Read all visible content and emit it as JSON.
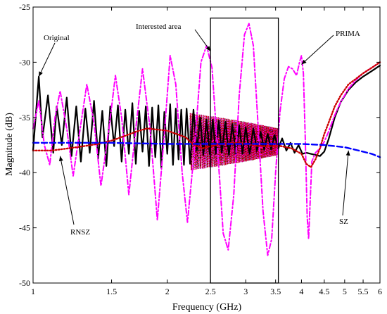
{
  "chart_data": {
    "type": "line",
    "xlabel": "Frequency (GHz)",
    "ylabel": "Magnitude (dB)",
    "x_scale": "log",
    "xlim": [
      1,
      6
    ],
    "ylim": [
      -50,
      -25
    ],
    "xticks": [
      1,
      1.5,
      2,
      2.5,
      3,
      3.5,
      4,
      4.5,
      5,
      5.5,
      6
    ],
    "xtick_labels": [
      "1",
      "1.5",
      "2",
      "2.5",
      "3",
      "3.5",
      "4",
      "4.5",
      "5",
      "5.5",
      "6"
    ],
    "yticks": [
      -50,
      -45,
      -40,
      -35,
      -30,
      -25
    ],
    "ytick_labels": [
      "-50",
      "-45",
      "-40",
      "-35",
      "-30",
      "-25"
    ],
    "grid": false,
    "series": [
      {
        "name": "Original",
        "color": "#000000",
        "style": "solid",
        "points": [
          [
            1.0,
            -38.0
          ],
          [
            1.03,
            -31.3
          ],
          [
            1.05,
            -36.8
          ],
          [
            1.08,
            -33.0
          ],
          [
            1.11,
            -38.2
          ],
          [
            1.13,
            -34.0
          ],
          [
            1.16,
            -37.5
          ],
          [
            1.19,
            -33.2
          ],
          [
            1.22,
            -38.5
          ],
          [
            1.25,
            -34.0
          ],
          [
            1.28,
            -39.0
          ],
          [
            1.31,
            -34.2
          ],
          [
            1.34,
            -38.2
          ],
          [
            1.37,
            -33.5
          ],
          [
            1.4,
            -38.7
          ],
          [
            1.43,
            -34.4
          ],
          [
            1.46,
            -39.4
          ],
          [
            1.49,
            -34.0
          ],
          [
            1.52,
            -37.6
          ],
          [
            1.55,
            -33.9
          ],
          [
            1.58,
            -39.0
          ],
          [
            1.61,
            -34.3
          ],
          [
            1.64,
            -38.3
          ],
          [
            1.67,
            -33.7
          ],
          [
            1.7,
            -39.2
          ],
          [
            1.73,
            -34.4
          ],
          [
            1.76,
            -38.1
          ],
          [
            1.79,
            -34.0
          ],
          [
            1.82,
            -39.4
          ],
          [
            1.85,
            -34.1
          ],
          [
            1.88,
            -38.6
          ],
          [
            1.91,
            -33.9
          ],
          [
            1.94,
            -39.6
          ],
          [
            1.97,
            -34.5
          ],
          [
            2.0,
            -38.3
          ],
          [
            2.03,
            -33.8
          ],
          [
            2.06,
            -39.3
          ],
          [
            2.09,
            -34.2
          ],
          [
            2.12,
            -38.8
          ],
          [
            2.15,
            -34.3
          ],
          [
            2.18,
            -39.3
          ],
          [
            2.21,
            -34.2
          ],
          [
            2.25,
            -39.2
          ],
          [
            2.29,
            -34.3
          ],
          [
            2.33,
            -38.0
          ],
          [
            2.37,
            -35.0
          ],
          [
            2.41,
            -38.4
          ],
          [
            2.45,
            -35.2
          ],
          [
            2.49,
            -38.3
          ],
          [
            2.53,
            -35.2
          ],
          [
            2.57,
            -38.3
          ],
          [
            2.61,
            -35.3
          ],
          [
            2.65,
            -38.2
          ],
          [
            2.7,
            -35.4
          ],
          [
            2.75,
            -38.4
          ],
          [
            2.8,
            -35.6
          ],
          [
            2.85,
            -38.4
          ],
          [
            2.9,
            -35.7
          ],
          [
            2.95,
            -38.3
          ],
          [
            3.0,
            -35.9
          ],
          [
            3.06,
            -38.3
          ],
          [
            3.12,
            -36.0
          ],
          [
            3.18,
            -38.0
          ],
          [
            3.24,
            -36.3
          ],
          [
            3.3,
            -37.9
          ],
          [
            3.36,
            -36.5
          ],
          [
            3.42,
            -37.9
          ],
          [
            3.48,
            -36.6
          ],
          [
            3.55,
            -37.8
          ],
          [
            3.62,
            -36.9
          ],
          [
            3.7,
            -38.0
          ],
          [
            3.78,
            -37.3
          ],
          [
            3.86,
            -38.2
          ],
          [
            3.94,
            -37.5
          ],
          [
            4.02,
            -38.3
          ],
          [
            4.1,
            -38.2
          ],
          [
            4.2,
            -38.3
          ],
          [
            4.3,
            -38.4
          ],
          [
            4.4,
            -38.5
          ],
          [
            4.5,
            -38.1
          ],
          [
            4.6,
            -37.0
          ],
          [
            4.75,
            -35.0
          ],
          [
            4.9,
            -33.6
          ],
          [
            5.1,
            -32.5
          ],
          [
            5.3,
            -31.8
          ],
          [
            5.5,
            -31.3
          ],
          [
            5.75,
            -30.8
          ],
          [
            6.0,
            -30.3
          ]
        ]
      },
      {
        "name": "PRIMA",
        "color": "#ff00ff",
        "style": "dash-dot",
        "points": [
          [
            1.0,
            -36.0
          ],
          [
            1.03,
            -33.5
          ],
          [
            1.06,
            -37.5
          ],
          [
            1.09,
            -39.3
          ],
          [
            1.12,
            -35.0
          ],
          [
            1.15,
            -32.6
          ],
          [
            1.19,
            -36.0
          ],
          [
            1.23,
            -40.3
          ],
          [
            1.27,
            -36.5
          ],
          [
            1.32,
            -32.0
          ],
          [
            1.37,
            -35.5
          ],
          [
            1.42,
            -41.2
          ],
          [
            1.48,
            -36.0
          ],
          [
            1.53,
            -31.2
          ],
          [
            1.58,
            -35.0
          ],
          [
            1.64,
            -42.0
          ],
          [
            1.7,
            -36.0
          ],
          [
            1.76,
            -30.6
          ],
          [
            1.83,
            -36.0
          ],
          [
            1.9,
            -44.3
          ],
          [
            1.97,
            -36.5
          ],
          [
            2.03,
            -29.4
          ],
          [
            2.09,
            -32.0
          ],
          [
            2.16,
            -40.0
          ],
          [
            2.22,
            -44.5
          ],
          [
            2.3,
            -38.0
          ],
          [
            2.38,
            -30.0
          ],
          [
            2.45,
            -28.5
          ],
          [
            2.52,
            -30.5
          ],
          [
            2.6,
            -38.5
          ],
          [
            2.67,
            -45.5
          ],
          [
            2.74,
            -47.0
          ],
          [
            2.82,
            -42.0
          ],
          [
            2.9,
            -33.0
          ],
          [
            2.98,
            -27.5
          ],
          [
            3.05,
            -26.5
          ],
          [
            3.12,
            -28.5
          ],
          [
            3.2,
            -36.0
          ],
          [
            3.28,
            -43.5
          ],
          [
            3.36,
            -47.5
          ],
          [
            3.43,
            -46.0
          ],
          [
            3.5,
            -40.0
          ],
          [
            3.58,
            -34.5
          ],
          [
            3.66,
            -31.5
          ],
          [
            3.74,
            -30.4
          ],
          [
            3.82,
            -30.6
          ],
          [
            3.9,
            -31.2
          ],
          [
            3.96,
            -30.0
          ],
          [
            4.0,
            -29.4
          ],
          [
            4.04,
            -31.0
          ],
          [
            4.08,
            -37.0
          ],
          [
            4.12,
            -44.0
          ],
          [
            4.15,
            -46.0
          ],
          [
            4.18,
            -43.0
          ],
          [
            4.22,
            -39.0
          ],
          [
            4.3,
            -38.2
          ],
          [
            4.4,
            -37.8
          ],
          [
            4.5,
            -37.2
          ],
          [
            4.6,
            -36.3
          ],
          [
            4.75,
            -34.8
          ],
          [
            4.9,
            -33.6
          ],
          [
            5.1,
            -32.4
          ],
          [
            5.3,
            -31.6
          ],
          [
            5.5,
            -31.0
          ],
          [
            5.75,
            -30.5
          ],
          [
            6.0,
            -30.0
          ]
        ]
      },
      {
        "name": "SZ",
        "color": "#0000ff",
        "style": "dashed",
        "points": [
          [
            1.0,
            -37.3
          ],
          [
            1.5,
            -37.3
          ],
          [
            2.0,
            -37.4
          ],
          [
            2.5,
            -37.4
          ],
          [
            3.0,
            -37.4
          ],
          [
            3.5,
            -37.4
          ],
          [
            4.0,
            -37.4
          ],
          [
            4.5,
            -37.5
          ],
          [
            4.75,
            -37.6
          ],
          [
            5.0,
            -37.7
          ],
          [
            5.25,
            -37.9
          ],
          [
            5.5,
            -38.1
          ],
          [
            5.75,
            -38.3
          ],
          [
            6.0,
            -38.6
          ]
        ]
      },
      {
        "name": "RNSZ",
        "color": "#cc0000",
        "style": "dotted",
        "points": [
          [
            1.0,
            -38.0
          ],
          [
            1.1,
            -38.0
          ],
          [
            1.2,
            -37.8
          ],
          [
            1.3,
            -37.6
          ],
          [
            1.4,
            -37.4
          ],
          [
            1.5,
            -37.1
          ],
          [
            1.6,
            -36.7
          ],
          [
            1.7,
            -36.3
          ],
          [
            1.8,
            -36.0
          ],
          [
            1.9,
            -36.1
          ],
          [
            2.0,
            -36.2
          ],
          [
            2.1,
            -36.5
          ],
          [
            2.2,
            -36.8
          ],
          [
            2.25,
            -37.2
          ],
          [
            2.3,
            -37.5
          ],
          [
            2.4,
            -37.8
          ],
          [
            2.5,
            -37.6
          ],
          [
            2.6,
            -37.5
          ],
          [
            2.7,
            -37.4
          ],
          [
            2.8,
            -37.3
          ],
          [
            2.9,
            -37.3
          ],
          [
            3.0,
            -37.4
          ],
          [
            3.2,
            -37.6
          ],
          [
            3.4,
            -37.6
          ],
          [
            3.6,
            -37.6
          ],
          [
            3.8,
            -37.8
          ],
          [
            4.0,
            -38.3
          ],
          [
            4.1,
            -39.2
          ],
          [
            4.2,
            -39.5
          ],
          [
            4.3,
            -38.8
          ],
          [
            4.4,
            -37.8
          ],
          [
            4.5,
            -36.5
          ],
          [
            4.6,
            -35.5
          ],
          [
            4.75,
            -34.0
          ],
          [
            4.9,
            -33.0
          ],
          [
            5.1,
            -32.0
          ],
          [
            5.3,
            -31.5
          ],
          [
            5.5,
            -31.0
          ],
          [
            5.75,
            -30.5
          ],
          [
            6.0,
            -30.0
          ]
        ]
      }
    ],
    "dense_oscillation": {
      "x_range": [
        2.25,
        3.55
      ],
      "amplitude_start": 2.6,
      "amplitude_end": 1.2,
      "center": -37.2,
      "period": 0.022
    },
    "highlight_box": {
      "label": "Interested area",
      "x_range": [
        2.5,
        3.55
      ],
      "y_range": [
        -50,
        -26
      ]
    },
    "annotations": [
      {
        "text": "Original",
        "target": [
          1.03,
          -31.3
        ]
      },
      {
        "text": "Interested area",
        "target": [
          2.5,
          -29.0
        ]
      },
      {
        "text": "PRIMA",
        "target": [
          4.0,
          -30.2
        ]
      },
      {
        "text": "RNSZ",
        "target": [
          1.15,
          -38.5
        ]
      },
      {
        "text": "SZ",
        "target": [
          5.1,
          -38.0
        ]
      }
    ]
  }
}
